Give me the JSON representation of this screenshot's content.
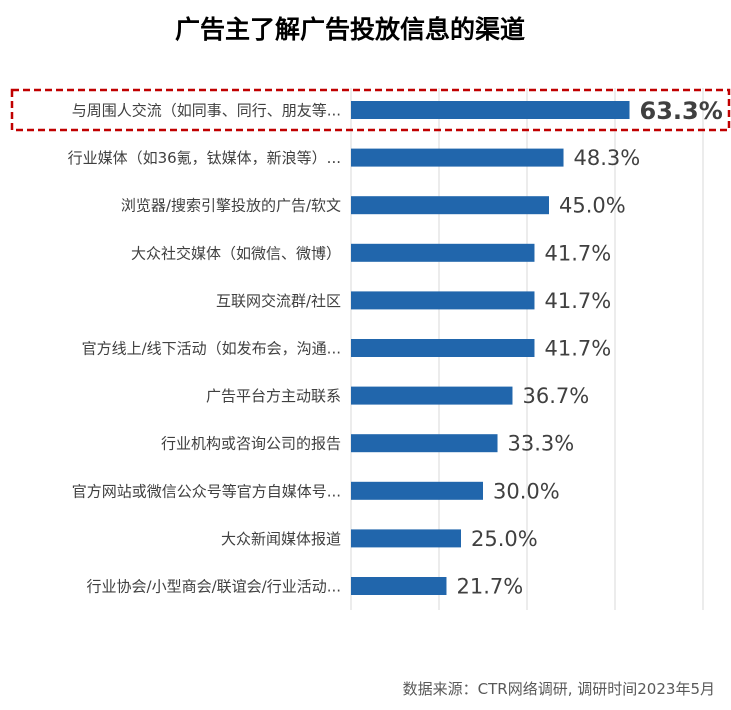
{
  "title": "广告主了解广告投放信息的渠道",
  "source": "数据来源：CTR网络调研, 调研时间2023年5月",
  "colors": {
    "bar": "#2166ac",
    "highlight_border": "#c00000",
    "grid": "#d9d9d9"
  },
  "chart_data": {
    "type": "bar",
    "orientation": "horizontal",
    "categories": [
      "与周围人交流（如同事、同行、朋友等...",
      "行业媒体（如36氪，钛媒体，新浪等）...",
      "浏览器/搜索引擎投放的广告/软文",
      "大众社交媒体（如微信、微博）",
      "互联网交流群/社区",
      "官方线上/线下活动（如发布会，沟通...",
      "广告平台方主动联系",
      "行业机构或咨询公司的报告",
      "官方网站或微信公众号等官方自媒体号...",
      "大众新闻媒体报道",
      "行业协会/小型商会/联谊会/行业活动..."
    ],
    "values": [
      63.3,
      48.3,
      45.0,
      41.7,
      41.7,
      41.7,
      36.7,
      33.3,
      30.0,
      25.0,
      21.7
    ],
    "value_labels": [
      "63.3%",
      "48.3%",
      "45.0%",
      "41.7%",
      "41.7%",
      "41.7%",
      "36.7%",
      "33.3%",
      "30.0%",
      "25.0%",
      "21.7%"
    ],
    "highlight_index": 0,
    "xlim": [
      0,
      80
    ],
    "grid": true,
    "legend": "none"
  }
}
